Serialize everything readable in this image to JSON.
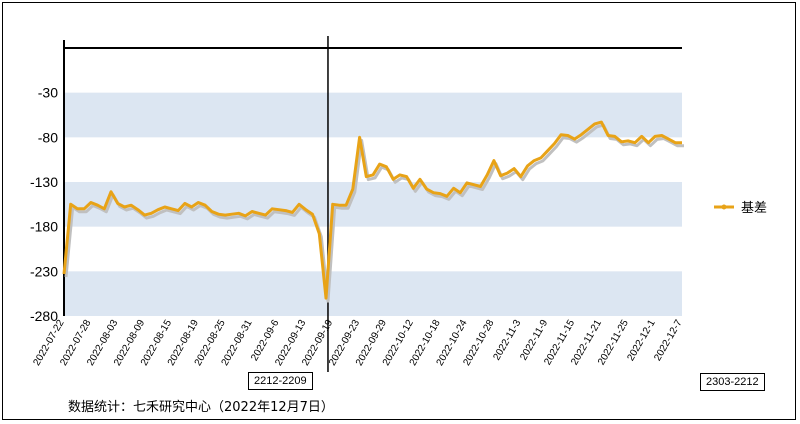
{
  "chart_data": {
    "type": "line",
    "title": "",
    "xlabel": "",
    "ylabel": "",
    "ylim": [
      -280,
      20
    ],
    "yticks": [
      -30,
      -80,
      -130,
      -180,
      -230,
      -280
    ],
    "x_tick_labels": [
      "2022-07-22",
      "2022-07-28",
      "2022-08-03",
      "2022-08-09",
      "2022-08-15",
      "2022-08-19",
      "2022-08-25",
      "2022-08-31",
      "2022-09-6",
      "2022-09-13",
      "2022-09-19",
      "2022-09-23",
      "2022-09-29",
      "2022-10-12",
      "2022-10-18",
      "2022-10-24",
      "2022-10-28",
      "2022-11-3",
      "2022-11-9",
      "2022-11-15",
      "2022-11-21",
      "2022-11-25",
      "2022-12-1",
      "2022-12-7"
    ],
    "series": [
      {
        "name": "基差",
        "color": "#e8a317",
        "values": [
          -233,
          -155,
          -160,
          -160,
          -153,
          -156,
          -160,
          -141,
          -154,
          -158,
          -156,
          -161,
          -167,
          -165,
          -161,
          -158,
          -160,
          -162,
          -154,
          -158,
          -153,
          -156,
          -163,
          -166,
          -167,
          -166,
          -165,
          -168,
          -163,
          -165,
          -167,
          -160,
          -161,
          -162,
          -164,
          -155,
          -161,
          -166,
          -188,
          -260,
          -155,
          -156,
          -156,
          -138,
          -80,
          -124,
          -122,
          -110,
          -113,
          -127,
          -122,
          -124,
          -137,
          -127,
          -138,
          -142,
          -143,
          -146,
          -137,
          -142,
          -131,
          -133,
          -135,
          -122,
          -106,
          -123,
          -120,
          -115,
          -124,
          -112,
          -106,
          -103,
          -95,
          -87,
          -77,
          -78,
          -82,
          -77,
          -71,
          -65,
          -63,
          -78,
          -79,
          -85,
          -84,
          -86,
          -79,
          -86,
          -79,
          -78,
          -82,
          -86,
          -86
        ],
        "shadow_color": "#c0c0c0"
      }
    ],
    "bands_color": "#dce6f2",
    "vertical_marker_index": 39,
    "legend_position": "right"
  },
  "legend": {
    "label": "基差"
  },
  "annotations": {
    "source_note": "数据统计：七禾研究中心（2022年12月7日）",
    "left_tag": "2212-2209",
    "right_tag": "2303-2212"
  }
}
